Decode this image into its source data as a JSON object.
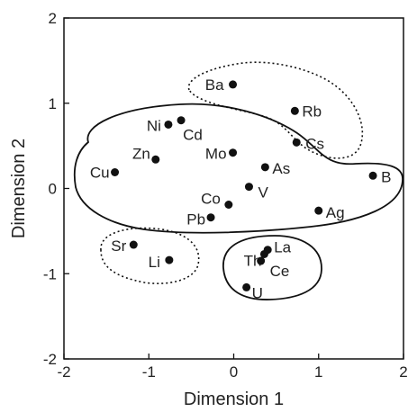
{
  "chart_data": {
    "type": "scatter",
    "title": "",
    "xlabel": "Dimension 1",
    "ylabel": "Dimension 2",
    "xlim": [
      -2,
      2
    ],
    "ylim": [
      -2,
      2
    ],
    "xticks": [
      -2,
      -1,
      0,
      1,
      2
    ],
    "yticks": [
      -2,
      -1,
      0,
      1,
      2
    ],
    "grid": false,
    "points": [
      {
        "label": "Ba",
        "x": -0.01,
        "y": 1.22
      },
      {
        "label": "Rb",
        "x": 0.72,
        "y": 0.91
      },
      {
        "label": "Cs",
        "x": 0.74,
        "y": 0.54
      },
      {
        "label": "Ni",
        "x": -0.77,
        "y": 0.75
      },
      {
        "label": "Cd",
        "x": -0.62,
        "y": 0.8
      },
      {
        "label": "Zn",
        "x": -0.92,
        "y": 0.34
      },
      {
        "label": "Mo",
        "x": -0.01,
        "y": 0.42
      },
      {
        "label": "As",
        "x": 0.37,
        "y": 0.25
      },
      {
        "label": "Cu",
        "x": -1.4,
        "y": 0.19
      },
      {
        "label": "B",
        "x": 1.64,
        "y": 0.15
      },
      {
        "label": "Co",
        "x": -0.06,
        "y": -0.19
      },
      {
        "label": "V",
        "x": 0.18,
        "y": 0.02
      },
      {
        "label": "Pb",
        "x": -0.27,
        "y": -0.34
      },
      {
        "label": "Ag",
        "x": 1.0,
        "y": -0.26
      },
      {
        "label": "Sr",
        "x": -1.18,
        "y": -0.66
      },
      {
        "label": "Li",
        "x": -0.76,
        "y": -0.84
      },
      {
        "label": "La",
        "x": 0.4,
        "y": -0.72
      },
      {
        "label": "Th",
        "x": 0.36,
        "y": -0.77
      },
      {
        "label": "Ce",
        "x": 0.32,
        "y": -0.85
      },
      {
        "label": "U",
        "x": 0.15,
        "y": -1.16
      }
    ],
    "clusters": [
      {
        "style": "solid",
        "members": [
          "Ni",
          "Cd",
          "Zn",
          "Mo",
          "As",
          "Cu",
          "B",
          "Co",
          "V",
          "Pb",
          "Ag"
        ]
      },
      {
        "style": "dotted",
        "members": [
          "Ba",
          "Rb",
          "Cs"
        ]
      },
      {
        "style": "dotted",
        "members": [
          "Sr",
          "Li"
        ]
      },
      {
        "style": "solid",
        "members": [
          "La",
          "Th",
          "Ce",
          "U"
        ]
      }
    ]
  }
}
